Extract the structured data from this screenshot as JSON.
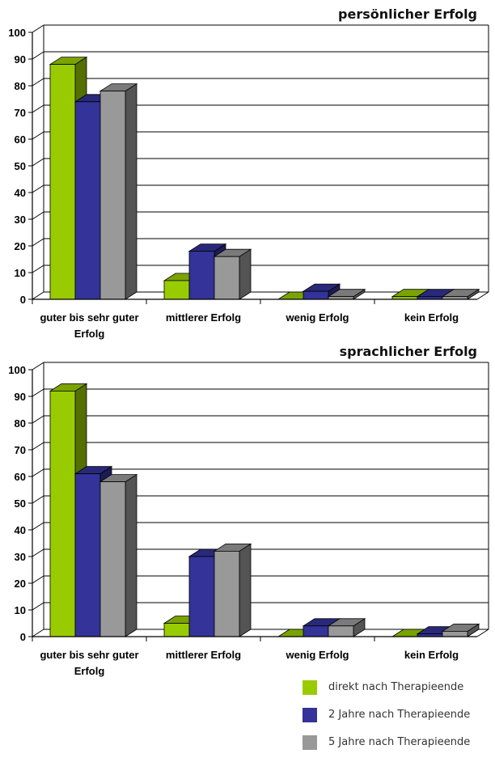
{
  "colors": {
    "green": "#99cc00",
    "blue": "#333399",
    "gray": "#999999"
  },
  "chart_data": [
    {
      "type": "bar",
      "title": "persönlicher Erfolg",
      "categories": [
        "guter bis sehr guter Erfolg",
        "mittlerer Erfolg",
        "wenig Erfolg",
        "kein Erfolg"
      ],
      "series": [
        {
          "name": "direkt nach Therapieende",
          "values": [
            88,
            7,
            0,
            1
          ]
        },
        {
          "name": "2 Jahre nach Therapieende",
          "values": [
            74,
            18,
            3,
            1
          ]
        },
        {
          "name": "5 Jahre nach Therapieende",
          "values": [
            78,
            16,
            1,
            1
          ]
        }
      ],
      "ylim": [
        0,
        100
      ],
      "yticks": [
        "0",
        "10",
        "20",
        "30",
        "40",
        "50",
        "60",
        "70",
        "80",
        "90",
        "100"
      ],
      "grid": true
    },
    {
      "type": "bar",
      "title": "sprachlicher Erfolg",
      "categories": [
        "guter bis sehr guter Erfolg",
        "mittlerer Erfolg",
        "wenig Erfolg",
        "kein Erfolg"
      ],
      "series": [
        {
          "name": "direkt nach Therapieende",
          "values": [
            92,
            5,
            0,
            0
          ]
        },
        {
          "name": "2 Jahre nach Therapieende",
          "values": [
            61,
            30,
            4,
            1
          ]
        },
        {
          "name": "5 Jahre nach Therapieende",
          "values": [
            58,
            32,
            4,
            2
          ]
        }
      ],
      "ylim": [
        0,
        100
      ],
      "yticks": [
        "0",
        "10",
        "20",
        "30",
        "40",
        "50",
        "60",
        "70",
        "80",
        "90",
        "100"
      ],
      "grid": true
    }
  ],
  "legend": {
    "position": "bottom-right",
    "items": [
      {
        "label": "direkt nach Therapieende",
        "color": "#99cc00"
      },
      {
        "label": "2 Jahre nach Therapieende",
        "color": "#333399"
      },
      {
        "label": "5 Jahre nach Therapieende",
        "color": "#999999"
      }
    ]
  }
}
